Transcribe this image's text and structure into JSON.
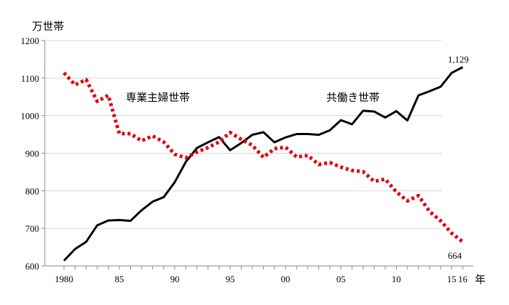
{
  "chart_data": {
    "type": "line",
    "ylabel": "万世帯",
    "xlabel_unit": "年",
    "ylim": [
      600,
      1200
    ],
    "yticks": [
      600,
      700,
      800,
      900,
      1000,
      1100,
      1200
    ],
    "grid": true,
    "x": [
      1980,
      1981,
      1982,
      1983,
      1984,
      1985,
      1986,
      1987,
      1988,
      1989,
      1990,
      1991,
      1992,
      1993,
      1994,
      1995,
      1996,
      1997,
      1998,
      1999,
      2000,
      2001,
      2002,
      2003,
      2004,
      2005,
      2006,
      2007,
      2008,
      2009,
      2010,
      2011,
      2012,
      2013,
      2014,
      2015,
      2016
    ],
    "xtick_labels": [
      {
        "year": 1980,
        "label": "1980"
      },
      {
        "year": 1985,
        "label": "85"
      },
      {
        "year": 1990,
        "label": "90"
      },
      {
        "year": 1995,
        "label": "95"
      },
      {
        "year": 2000,
        "label": "00"
      },
      {
        "year": 2005,
        "label": "05"
      },
      {
        "year": 2010,
        "label": "10"
      },
      {
        "year": 2015,
        "label": "15"
      },
      {
        "year": 2016,
        "label": "16"
      }
    ],
    "series": [
      {
        "name": "共働き世帯",
        "color": "#000000",
        "style": "solid",
        "values": [
          614,
          645,
          664,
          708,
          721,
          722,
          720,
          748,
          771,
          783,
          823,
          877,
          914,
          929,
          943,
          908,
          927,
          949,
          956,
          929,
          942,
          951,
          951,
          949,
          961,
          988,
          977,
          1013,
          1011,
          995,
          1012,
          987,
          1054,
          1065,
          1077,
          1114,
          1129
        ],
        "end_label": "1,129"
      },
      {
        "name": "専業主婦世帯",
        "color": "#e0000f",
        "style": "dotted",
        "values": [
          1114,
          1082,
          1096,
          1038,
          1054,
          952,
          952,
          933,
          946,
          930,
          897,
          888,
          903,
          915,
          930,
          955,
          937,
          921,
          889,
          912,
          916,
          890,
          894,
          870,
          875,
          863,
          854,
          851,
          825,
          831,
          797,
          773,
          787,
          745,
          720,
          687,
          664
        ],
        "end_label": "664"
      }
    ]
  }
}
